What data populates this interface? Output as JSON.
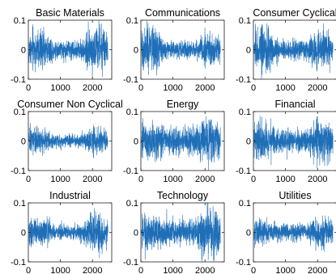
{
  "chart_data": [
    {
      "type": "line",
      "title": "Basic Materials",
      "xlim": [
        0,
        2600
      ],
      "ylim": [
        -0.1,
        0.1
      ],
      "xticks": [
        "0",
        "1000",
        "2000"
      ],
      "yticks": [
        "0.1",
        "0",
        "-0.1"
      ],
      "series": [
        {
          "color": "#1f6fb8",
          "n_points": 2500,
          "y_range": [
            -0.09,
            0.09
          ],
          "shape": "high volatility early, calmer middle, burst near x≈1900–2100"
        }
      ]
    },
    {
      "type": "line",
      "title": "Communications",
      "xlim": [
        0,
        2600
      ],
      "ylim": [
        -0.1,
        0.1
      ],
      "xticks": [
        "0",
        "1000",
        "2000"
      ],
      "yticks": [
        "0.1",
        "0",
        "-0.1"
      ],
      "series": [
        {
          "color": "#1f6fb8",
          "n_points": 2500,
          "y_range": [
            -0.09,
            0.08
          ],
          "shape": "very high volatility at start (x<300), calmer afterwards, moderate burst near x≈2000"
        }
      ]
    },
    {
      "type": "line",
      "title": "Consumer Cyclical",
      "xlim": [
        0,
        2600
      ],
      "ylim": [
        -0.1,
        0.1
      ],
      "xticks": [
        "0",
        "1000",
        "2000"
      ],
      "yticks": [
        "0.1",
        "0",
        "-0.1"
      ],
      "series": [
        {
          "color": "#1f6fb8",
          "n_points": 2500,
          "y_range": [
            -0.09,
            0.08
          ],
          "shape": "high volatility early, calmer middle, burst near x≈2000"
        }
      ]
    },
    {
      "type": "line",
      "title": "Consumer Non Cyclical",
      "xlim": [
        0,
        2600
      ],
      "ylim": [
        -0.1,
        0.1
      ],
      "xticks": [
        "0",
        "1000",
        "2000"
      ],
      "yticks": [
        "0.1",
        "0",
        "-0.1"
      ],
      "series": [
        {
          "color": "#1f6fb8",
          "n_points": 2500,
          "y_range": [
            -0.07,
            0.05
          ],
          "shape": "moderate volatility early, low middle, burst near x≈1900–2100"
        }
      ]
    },
    {
      "type": "line",
      "title": "Energy",
      "xlim": [
        0,
        2600
      ],
      "ylim": [
        -0.1,
        0.1
      ],
      "xticks": [
        "0",
        "1000",
        "2000"
      ],
      "yticks": [
        "0.1",
        "0",
        "-0.1"
      ],
      "series": [
        {
          "color": "#1f6fb8",
          "n_points": 2500,
          "y_range": [
            -0.09,
            0.09
          ],
          "shape": "high volatility throughout, largest near x≈2000"
        }
      ]
    },
    {
      "type": "line",
      "title": "Financial",
      "xlim": [
        0,
        2600
      ],
      "ylim": [
        -0.1,
        0.1
      ],
      "xticks": [
        "0",
        "1000",
        "2000"
      ],
      "yticks": [
        "0.1",
        "0",
        "-0.1"
      ],
      "series": [
        {
          "color": "#1f6fb8",
          "n_points": 2500,
          "y_range": [
            -0.09,
            0.08
          ],
          "shape": "high volatility early, calmer middle, burst near x≈2000"
        }
      ]
    },
    {
      "type": "line",
      "title": "Industrial",
      "xlim": [
        0,
        2600
      ],
      "ylim": [
        -0.1,
        0.1
      ],
      "xticks": [
        "0",
        "1000",
        "2000"
      ],
      "yticks": [
        "0.1",
        "0",
        "-0.1"
      ],
      "series": [
        {
          "color": "#1f6fb8",
          "n_points": 2500,
          "y_range": [
            -0.09,
            0.07
          ],
          "shape": "moderate volatility early, low middle, burst near x≈2000"
        }
      ]
    },
    {
      "type": "line",
      "title": "Technology",
      "xlim": [
        0,
        2600
      ],
      "ylim": [
        -0.1,
        0.1
      ],
      "xticks": [
        "0",
        "1000",
        "2000"
      ],
      "yticks": [
        "0.1",
        "0",
        "-0.1"
      ],
      "series": [
        {
          "color": "#1f6fb8",
          "n_points": 2500,
          "y_range": [
            -0.1,
            0.1
          ],
          "shape": "high volatility throughout, spike near x≈1900–2000"
        }
      ]
    },
    {
      "type": "line",
      "title": "Utilities",
      "xlim": [
        0,
        2600
      ],
      "ylim": [
        -0.1,
        0.1
      ],
      "xticks": [
        "0",
        "1000",
        "2000"
      ],
      "yticks": [
        "0.1",
        "0",
        "-0.1"
      ],
      "series": [
        {
          "color": "#1f6fb8",
          "n_points": 2500,
          "y_range": [
            -0.07,
            0.06
          ],
          "shape": "moderate volatility early, calmer middle, burst near x≈2000"
        }
      ]
    }
  ]
}
